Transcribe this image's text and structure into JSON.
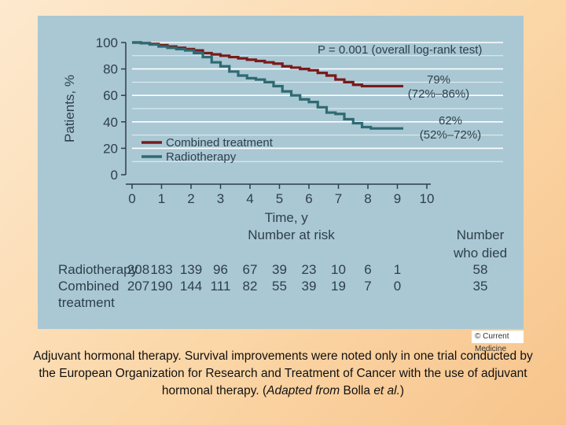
{
  "chart_data": {
    "type": "line",
    "title": "",
    "xlabel": "Time, y",
    "ylabel": "Patients, %",
    "xlim": [
      0,
      10
    ],
    "ylim": [
      0,
      100
    ],
    "x_ticks": [
      "0",
      "1",
      "2",
      "3",
      "4",
      "5",
      "6",
      "7",
      "8",
      "9",
      "10"
    ],
    "y_ticks": [
      "0",
      "20",
      "40",
      "60",
      "80",
      "100"
    ],
    "annotation_p": "P = 0.001 (overall log-rank test)",
    "series": [
      {
        "name": "Combined treatment",
        "color": "#7a1a1a",
        "end_label": "79%",
        "end_ci": "(72%–86%)",
        "x": [
          0,
          0.3,
          0.6,
          0.9,
          1.2,
          1.5,
          1.8,
          2.1,
          2.4,
          2.7,
          3.0,
          3.3,
          3.6,
          3.9,
          4.2,
          4.5,
          4.8,
          5.1,
          5.4,
          5.7,
          6.0,
          6.3,
          6.6,
          6.9,
          7.2,
          7.5,
          7.8,
          8.1,
          8.4,
          8.7,
          9.0,
          9.2
        ],
        "y": [
          100,
          99.5,
          99,
          98,
          97,
          96,
          95,
          94,
          92,
          91,
          90,
          89,
          88,
          87,
          86,
          85,
          84,
          82,
          81,
          80,
          79,
          77,
          75,
          72,
          70,
          68,
          67,
          67,
          67,
          67,
          67,
          67
        ]
      },
      {
        "name": "Radiotherapy",
        "color": "#2f6a72",
        "end_label": "62%",
        "end_ci": "(52%–72%)",
        "x": [
          0,
          0.3,
          0.6,
          0.9,
          1.2,
          1.5,
          1.8,
          2.1,
          2.4,
          2.7,
          3.0,
          3.3,
          3.6,
          3.9,
          4.2,
          4.5,
          4.8,
          5.1,
          5.4,
          5.7,
          6.0,
          6.3,
          6.6,
          6.9,
          7.2,
          7.5,
          7.8,
          8.1,
          8.4,
          8.7,
          9.0,
          9.2
        ],
        "y": [
          100,
          99.5,
          98.5,
          97,
          96,
          95,
          94,
          92,
          89,
          85,
          82,
          78,
          75,
          73,
          72,
          70,
          67,
          63,
          60,
          57,
          55,
          51,
          47,
          46,
          42,
          39,
          36,
          35,
          35,
          35,
          35,
          35
        ]
      }
    ],
    "risk_table": {
      "heading": "Number at risk",
      "died_heading": [
        "Number",
        "who died"
      ],
      "rows": [
        {
          "label": [
            "Radiotherapy"
          ],
          "counts": [
            "208",
            "183",
            "139",
            "96",
            "67",
            "39",
            "23",
            "10",
            "6",
            "1"
          ],
          "died": "58"
        },
        {
          "label": [
            "Combined",
            "treatment"
          ],
          "counts": [
            "207",
            "190",
            "144",
            "111",
            "82",
            "55",
            "39",
            "19",
            "7",
            "0"
          ],
          "died": "35"
        }
      ]
    }
  },
  "credit": "© Current Medicine",
  "caption": {
    "part1": "Adjuvant hormonal therapy. Survival improvements were noted only in one trial conducted by the European Organization for Research and Treatment of Cancer with the use of adjuvant hormonal therapy. (",
    "italic1": "Adapted from",
    "part2": " Bolla ",
    "italic2": "et al.",
    "part3": ")"
  }
}
